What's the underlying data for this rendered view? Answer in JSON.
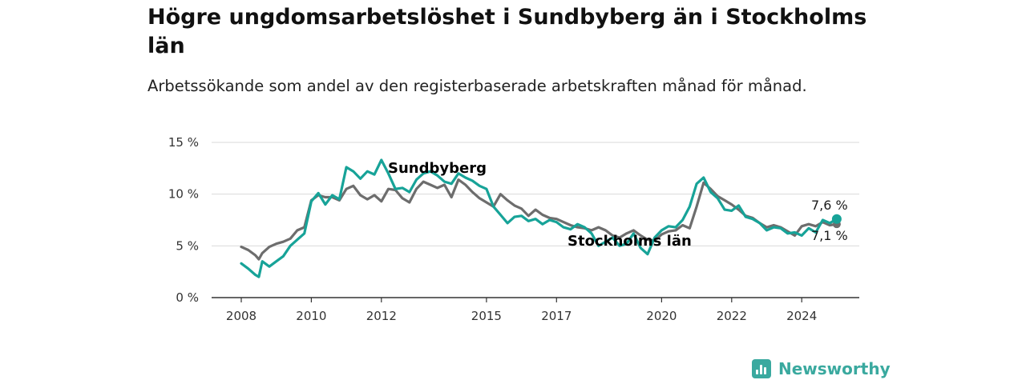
{
  "title": "Högre ungdomsarbetslöshet i Sundbyberg än i Stockholms län",
  "subtitle": "Arbetssökande som andel av den registerbaserade arbetskraften månad för månad.",
  "brand": {
    "name": "Newsworthy"
  },
  "colors": {
    "sundbyberg": "#17a398",
    "stockholm": "#6d6d6d",
    "grid": "#d9d9d9",
    "axis": "#333333",
    "brand": "#3aa99f"
  },
  "chart_data": {
    "type": "line",
    "title": "Högre ungdomsarbetslöshet i Sundbyberg än i Stockholms län",
    "subtitle": "Arbetssökande som andel av den registerbaserade arbetskraften månad för månad.",
    "xlim": [
      2008,
      2025
    ],
    "ylim": [
      0,
      15
    ],
    "yticks": [
      0,
      5,
      10,
      15
    ],
    "ytick_labels": [
      "0 %",
      "5 %",
      "10 %",
      "15 %"
    ],
    "xticks": [
      2008,
      2010,
      2012,
      2015,
      2017,
      2020,
      2022,
      2024
    ],
    "xtick_labels": [
      "2008",
      "2010",
      "2012",
      "2015",
      "2017",
      "2020",
      "2022",
      "2024"
    ],
    "grid": "horizontal",
    "series": [
      {
        "name": "Stockholms län",
        "color": "#6d6d6d",
        "end_label": "7,1 %",
        "points": [
          [
            2008.0,
            4.9
          ],
          [
            2008.2,
            4.6
          ],
          [
            2008.4,
            4.1
          ],
          [
            2008.5,
            3.7
          ],
          [
            2008.6,
            4.3
          ],
          [
            2008.8,
            4.9
          ],
          [
            2009.0,
            5.2
          ],
          [
            2009.2,
            5.4
          ],
          [
            2009.4,
            5.7
          ],
          [
            2009.6,
            6.5
          ],
          [
            2009.8,
            6.8
          ],
          [
            2010.0,
            9.4
          ],
          [
            2010.2,
            9.9
          ],
          [
            2010.4,
            9.7
          ],
          [
            2010.6,
            9.7
          ],
          [
            2010.8,
            9.4
          ],
          [
            2011.0,
            10.5
          ],
          [
            2011.2,
            10.8
          ],
          [
            2011.4,
            9.9
          ],
          [
            2011.6,
            9.5
          ],
          [
            2011.8,
            9.9
          ],
          [
            2012.0,
            9.3
          ],
          [
            2012.2,
            10.5
          ],
          [
            2012.4,
            10.4
          ],
          [
            2012.6,
            9.6
          ],
          [
            2012.8,
            9.2
          ],
          [
            2013.0,
            10.5
          ],
          [
            2013.2,
            11.2
          ],
          [
            2013.4,
            10.9
          ],
          [
            2013.6,
            10.6
          ],
          [
            2013.8,
            10.9
          ],
          [
            2014.0,
            9.7
          ],
          [
            2014.2,
            11.4
          ],
          [
            2014.4,
            10.9
          ],
          [
            2014.6,
            10.2
          ],
          [
            2014.8,
            9.6
          ],
          [
            2015.0,
            9.2
          ],
          [
            2015.2,
            8.8
          ],
          [
            2015.4,
            10.0
          ],
          [
            2015.6,
            9.4
          ],
          [
            2015.8,
            8.9
          ],
          [
            2016.0,
            8.6
          ],
          [
            2016.2,
            7.9
          ],
          [
            2016.4,
            8.5
          ],
          [
            2016.6,
            8.0
          ],
          [
            2016.8,
            7.7
          ],
          [
            2017.0,
            7.6
          ],
          [
            2017.2,
            7.3
          ],
          [
            2017.4,
            7.0
          ],
          [
            2017.6,
            6.8
          ],
          [
            2017.8,
            6.7
          ],
          [
            2018.0,
            6.5
          ],
          [
            2018.2,
            6.8
          ],
          [
            2018.4,
            6.5
          ],
          [
            2018.6,
            6.0
          ],
          [
            2018.8,
            5.8
          ],
          [
            2019.0,
            6.2
          ],
          [
            2019.2,
            6.5
          ],
          [
            2019.4,
            6.0
          ],
          [
            2019.6,
            5.6
          ],
          [
            2019.8,
            5.5
          ],
          [
            2020.0,
            6.1
          ],
          [
            2020.2,
            6.4
          ],
          [
            2020.4,
            6.5
          ],
          [
            2020.6,
            7.0
          ],
          [
            2020.8,
            6.7
          ],
          [
            2021.0,
            8.8
          ],
          [
            2021.2,
            11.1
          ],
          [
            2021.4,
            10.5
          ],
          [
            2021.6,
            9.8
          ],
          [
            2021.8,
            9.4
          ],
          [
            2022.0,
            9.0
          ],
          [
            2022.2,
            8.5
          ],
          [
            2022.4,
            7.9
          ],
          [
            2022.6,
            7.7
          ],
          [
            2022.8,
            7.2
          ],
          [
            2023.0,
            6.8
          ],
          [
            2023.2,
            7.0
          ],
          [
            2023.4,
            6.8
          ],
          [
            2023.6,
            6.4
          ],
          [
            2023.8,
            6.0
          ],
          [
            2024.0,
            6.9
          ],
          [
            2024.2,
            7.1
          ],
          [
            2024.4,
            6.9
          ],
          [
            2024.6,
            7.3
          ],
          [
            2024.8,
            7.0
          ],
          [
            2025.0,
            7.1
          ]
        ]
      },
      {
        "name": "Sundbyberg",
        "color": "#17a398",
        "end_label": "7,6 %",
        "points": [
          [
            2008.0,
            3.3
          ],
          [
            2008.2,
            2.8
          ],
          [
            2008.4,
            2.2
          ],
          [
            2008.5,
            2.0
          ],
          [
            2008.6,
            3.5
          ],
          [
            2008.8,
            3.0
          ],
          [
            2009.0,
            3.5
          ],
          [
            2009.2,
            4.0
          ],
          [
            2009.4,
            5.0
          ],
          [
            2009.6,
            5.6
          ],
          [
            2009.8,
            6.2
          ],
          [
            2010.0,
            9.3
          ],
          [
            2010.2,
            10.1
          ],
          [
            2010.4,
            9.0
          ],
          [
            2010.6,
            9.9
          ],
          [
            2010.8,
            9.5
          ],
          [
            2011.0,
            12.6
          ],
          [
            2011.2,
            12.2
          ],
          [
            2011.4,
            11.5
          ],
          [
            2011.6,
            12.2
          ],
          [
            2011.8,
            11.9
          ],
          [
            2012.0,
            13.3
          ],
          [
            2012.2,
            12.0
          ],
          [
            2012.4,
            10.5
          ],
          [
            2012.6,
            10.6
          ],
          [
            2012.8,
            10.2
          ],
          [
            2013.0,
            11.4
          ],
          [
            2013.2,
            12.0
          ],
          [
            2013.4,
            12.2
          ],
          [
            2013.6,
            11.8
          ],
          [
            2013.8,
            11.2
          ],
          [
            2014.0,
            11.0
          ],
          [
            2014.2,
            12.0
          ],
          [
            2014.4,
            11.6
          ],
          [
            2014.6,
            11.3
          ],
          [
            2014.8,
            10.8
          ],
          [
            2015.0,
            10.5
          ],
          [
            2015.2,
            8.8
          ],
          [
            2015.4,
            8.0
          ],
          [
            2015.6,
            7.2
          ],
          [
            2015.8,
            7.8
          ],
          [
            2016.0,
            7.9
          ],
          [
            2016.2,
            7.4
          ],
          [
            2016.4,
            7.6
          ],
          [
            2016.6,
            7.1
          ],
          [
            2016.8,
            7.5
          ],
          [
            2017.0,
            7.3
          ],
          [
            2017.2,
            6.8
          ],
          [
            2017.4,
            6.6
          ],
          [
            2017.6,
            7.1
          ],
          [
            2017.8,
            6.8
          ],
          [
            2018.0,
            6.2
          ],
          [
            2018.2,
            5.0
          ],
          [
            2018.4,
            5.4
          ],
          [
            2018.6,
            5.8
          ],
          [
            2018.8,
            5.0
          ],
          [
            2019.0,
            5.2
          ],
          [
            2019.2,
            6.2
          ],
          [
            2019.4,
            4.8
          ],
          [
            2019.6,
            4.2
          ],
          [
            2019.8,
            5.8
          ],
          [
            2020.0,
            6.5
          ],
          [
            2020.2,
            6.9
          ],
          [
            2020.4,
            6.8
          ],
          [
            2020.6,
            7.5
          ],
          [
            2020.8,
            8.8
          ],
          [
            2021.0,
            11.0
          ],
          [
            2021.2,
            11.6
          ],
          [
            2021.4,
            10.2
          ],
          [
            2021.6,
            9.6
          ],
          [
            2021.8,
            8.5
          ],
          [
            2022.0,
            8.4
          ],
          [
            2022.2,
            8.9
          ],
          [
            2022.4,
            7.8
          ],
          [
            2022.6,
            7.6
          ],
          [
            2022.8,
            7.2
          ],
          [
            2023.0,
            6.5
          ],
          [
            2023.2,
            6.8
          ],
          [
            2023.4,
            6.7
          ],
          [
            2023.6,
            6.2
          ],
          [
            2023.8,
            6.3
          ],
          [
            2024.0,
            6.0
          ],
          [
            2024.2,
            6.7
          ],
          [
            2024.4,
            6.3
          ],
          [
            2024.6,
            7.5
          ],
          [
            2024.8,
            7.2
          ],
          [
            2025.0,
            7.6
          ]
        ]
      }
    ]
  }
}
